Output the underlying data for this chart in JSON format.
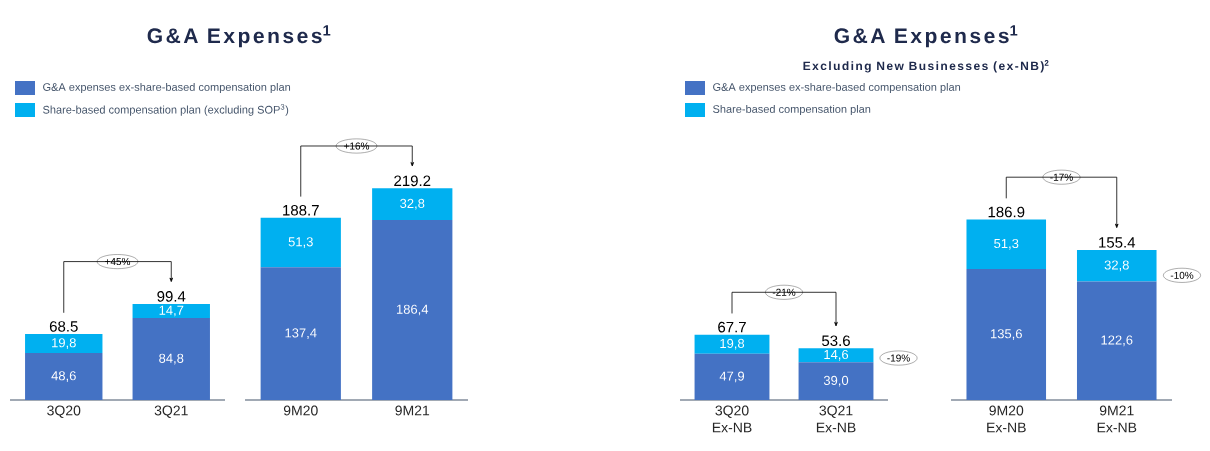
{
  "chart_data": [
    {
      "type": "bar",
      "stacked": true,
      "title": "G&A Expenses$^{1}$",
      "legend": "top",
      "categories": [
        "3Q20",
        "3Q21"
      ],
      "series": [
        {
          "name": "G&A expenses ex-share-based compensation plan",
          "color": "#4472c4",
          "values": [
            48.6,
            84.8
          ],
          "value_labels": [
            "48,6",
            "84,8"
          ]
        },
        {
          "name": "Share-based compensation plan (excluding SOP$^{3}$)",
          "color": "#00b0f0",
          "values": [
            19.8,
            14.7
          ],
          "value_labels": [
            "19,8",
            "14,7"
          ]
        }
      ],
      "totals": [
        "68.5",
        "99.4"
      ],
      "annotations": [
        "+45%"
      ]
    },
    {
      "type": "bar",
      "stacked": true,
      "categories": [
        "9M20",
        "9M21"
      ],
      "series": [
        {
          "color": "#4472c4",
          "values": [
            137.4,
            186.4
          ],
          "value_labels": [
            "137,4",
            "186,4"
          ]
        },
        {
          "color": "#00b0f0",
          "values": [
            51.3,
            32.8
          ],
          "value_labels": [
            "51,3",
            "32,8"
          ]
        }
      ],
      "totals": [
        "188.7",
        "219.2"
      ],
      "annotations": [
        "+16%"
      ]
    },
    {
      "type": "bar",
      "stacked": true,
      "title": "G&A Expenses$^{1}$",
      "subtitle": "Excluding New Businesses (ex-NB)$^{2}$",
      "legend": "top",
      "categories": [
        "3Q20 Ex-NB",
        "3Q21 Ex-NB"
      ],
      "series": [
        {
          "name": "G&A expenses ex-share-based compensation plan",
          "color": "#4472c4",
          "values": [
            47.9,
            39.0
          ],
          "value_labels": [
            "47,9",
            "39,0"
          ]
        },
        {
          "name": "Share-based compensation plan",
          "color": "#00b0f0",
          "values": [
            19.8,
            14.6
          ],
          "value_labels": [
            "19,8",
            "14,6"
          ]
        }
      ],
      "totals": [
        "67.7",
        "53.6"
      ],
      "annotations": [
        "-21%",
        "-19%"
      ]
    },
    {
      "type": "bar",
      "stacked": true,
      "categories": [
        "9M20 Ex-NB",
        "9M21 Ex-NB"
      ],
      "series": [
        {
          "color": "#4472c4",
          "values": [
            135.6,
            122.6
          ],
          "value_labels": [
            "135,6",
            "122,6"
          ]
        },
        {
          "color": "#00b0f0",
          "values": [
            51.3,
            32.8
          ],
          "value_labels": [
            "51,3",
            "32,8"
          ]
        }
      ],
      "totals": [
        "186.9",
        "155.4"
      ],
      "annotations": [
        "-17%",
        "-10%"
      ]
    }
  ]
}
